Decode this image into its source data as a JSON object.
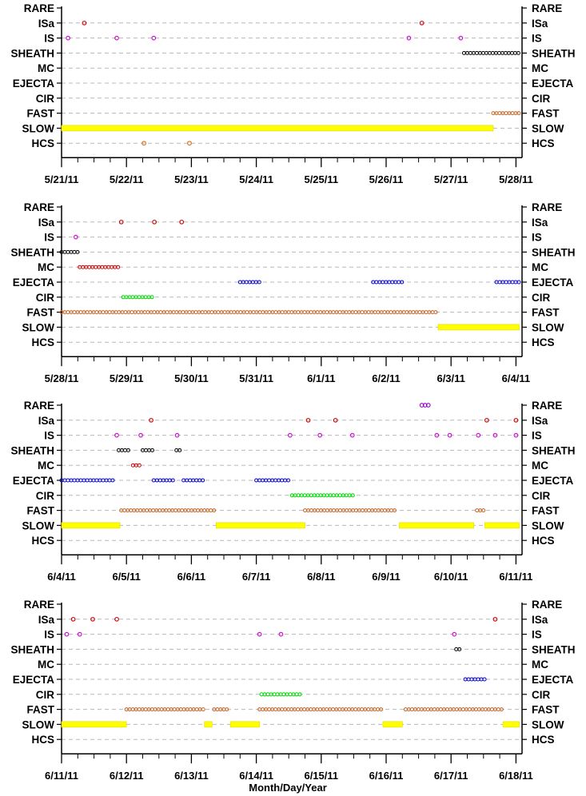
{
  "chart_data": {
    "type": "scatter",
    "xlabel": "Month/Day/Year",
    "categories": [
      "RARE",
      "ISa",
      "IS",
      "SHEATH",
      "MC",
      "EJECTA",
      "CIR",
      "FAST",
      "SLOW",
      "HCS"
    ],
    "colors": {
      "ISa": "#cc0000",
      "IS": "#cc00cc",
      "SHEATH": "#000000",
      "MC": "#cc0000",
      "EJECTA": "#0000cc",
      "CIR": "#00dd00",
      "FAST": "#c86420",
      "SLOW": "#ffff00",
      "HCS": "#d2691e",
      "RARE": "#9900cc"
    },
    "grid": "dashed horizontal",
    "panels": [
      {
        "start": "2011-05-21",
        "xticks": [
          "5/21/11",
          "5/22/11",
          "5/23/11",
          "5/24/11",
          "5/25/11",
          "5/26/11",
          "5/27/11",
          "5/28/11"
        ],
        "events": [
          {
            "cat": "ISa",
            "x": 0.35
          },
          {
            "cat": "ISa",
            "x": 5.55
          },
          {
            "cat": "IS",
            "x": 0.1
          },
          {
            "cat": "IS",
            "x": 0.85
          },
          {
            "cat": "IS",
            "x": 1.42
          },
          {
            "cat": "IS",
            "x": 5.35
          },
          {
            "cat": "IS",
            "x": 6.15
          }
        ],
        "intervals": [
          {
            "cat": "SHEATH",
            "start": 6.2,
            "end": 7.05
          },
          {
            "cat": "FAST",
            "start": 6.65,
            "end": 7.05
          },
          {
            "cat": "SLOW",
            "start": 0.0,
            "end": 6.65
          }
        ],
        "hcs": [
          {
            "x": 1.27
          },
          {
            "x": 1.97
          }
        ]
      },
      {
        "start": "2011-05-28",
        "xticks": [
          "5/28/11",
          "5/29/11",
          "5/30/11",
          "5/31/11",
          "6/1/11",
          "6/2/11",
          "6/3/11",
          "6/4/11"
        ],
        "events": [
          {
            "cat": "ISa",
            "x": 0.92
          },
          {
            "cat": "ISa",
            "x": 1.43
          },
          {
            "cat": "ISa",
            "x": 1.85
          },
          {
            "cat": "IS",
            "x": 0.22
          }
        ],
        "intervals": [
          {
            "cat": "SHEATH",
            "start": 0.0,
            "end": 0.28
          },
          {
            "cat": "MC",
            "start": 0.28,
            "end": 0.92
          },
          {
            "cat": "EJECTA",
            "start": 2.75,
            "end": 3.05
          },
          {
            "cat": "EJECTA",
            "start": 4.8,
            "end": 5.25
          },
          {
            "cat": "EJECTA",
            "start": 6.7,
            "end": 7.05
          },
          {
            "cat": "CIR",
            "start": 0.95,
            "end": 1.42
          },
          {
            "cat": "FAST",
            "start": 0.0,
            "end": 5.8
          },
          {
            "cat": "SLOW",
            "start": 5.8,
            "end": 7.05
          }
        ],
        "hcs": []
      },
      {
        "start": "2011-06-04",
        "xticks": [
          "6/4/11",
          "6/5/11",
          "6/6/11",
          "6/7/11",
          "6/8/11",
          "6/9/11",
          "6/10/11",
          "6/11/11"
        ],
        "events": [
          {
            "cat": "RARE",
            "x": 5.55
          },
          {
            "cat": "RARE",
            "x": 5.6
          },
          {
            "cat": "RARE",
            "x": 5.65
          },
          {
            "cat": "ISa",
            "x": 1.38
          },
          {
            "cat": "ISa",
            "x": 3.8
          },
          {
            "cat": "ISa",
            "x": 4.22
          },
          {
            "cat": "ISa",
            "x": 6.55
          },
          {
            "cat": "ISa",
            "x": 7.0
          },
          {
            "cat": "IS",
            "x": 0.85
          },
          {
            "cat": "IS",
            "x": 1.22
          },
          {
            "cat": "IS",
            "x": 1.78
          },
          {
            "cat": "IS",
            "x": 3.52
          },
          {
            "cat": "IS",
            "x": 3.98
          },
          {
            "cat": "IS",
            "x": 4.48
          },
          {
            "cat": "IS",
            "x": 5.78
          },
          {
            "cat": "IS",
            "x": 5.98
          },
          {
            "cat": "IS",
            "x": 6.42
          },
          {
            "cat": "IS",
            "x": 6.68
          },
          {
            "cat": "IS",
            "x": 7.0
          }
        ],
        "intervals": [
          {
            "cat": "SHEATH",
            "start": 0.88,
            "end": 1.05
          },
          {
            "cat": "SHEATH",
            "start": 1.25,
            "end": 1.4
          },
          {
            "cat": "SHEATH",
            "start": 1.77,
            "end": 1.85
          },
          {
            "cat": "MC",
            "start": 1.1,
            "end": 1.22
          },
          {
            "cat": "EJECTA",
            "start": 0.0,
            "end": 0.8
          },
          {
            "cat": "EJECTA",
            "start": 1.42,
            "end": 1.75
          },
          {
            "cat": "EJECTA",
            "start": 1.88,
            "end": 2.2
          },
          {
            "cat": "EJECTA",
            "start": 3.0,
            "end": 3.5
          },
          {
            "cat": "CIR",
            "start": 3.55,
            "end": 4.5
          },
          {
            "cat": "FAST",
            "start": 0.92,
            "end": 2.35
          },
          {
            "cat": "FAST",
            "start": 3.75,
            "end": 5.15
          },
          {
            "cat": "FAST",
            "start": 6.4,
            "end": 6.5
          },
          {
            "cat": "SLOW",
            "start": 0.0,
            "end": 0.9
          },
          {
            "cat": "SLOW",
            "start": 2.38,
            "end": 3.75
          },
          {
            "cat": "SLOW",
            "start": 5.2,
            "end": 6.35
          },
          {
            "cat": "SLOW",
            "start": 6.52,
            "end": 7.05
          }
        ],
        "hcs": []
      },
      {
        "start": "2011-06-11",
        "xticks": [
          "6/11/11",
          "6/12/11",
          "6/13/11",
          "6/14/11",
          "6/15/11",
          "6/16/11",
          "6/17/11",
          "6/18/11"
        ],
        "events": [
          {
            "cat": "ISa",
            "x": 0.18
          },
          {
            "cat": "ISa",
            "x": 0.48
          },
          {
            "cat": "ISa",
            "x": 0.85
          },
          {
            "cat": "ISa",
            "x": 6.68
          },
          {
            "cat": "IS",
            "x": 0.08
          },
          {
            "cat": "IS",
            "x": 0.28
          },
          {
            "cat": "IS",
            "x": 3.05
          },
          {
            "cat": "IS",
            "x": 3.38
          },
          {
            "cat": "IS",
            "x": 6.05
          }
        ],
        "intervals": [
          {
            "cat": "SHEATH",
            "start": 6.08,
            "end": 6.15
          },
          {
            "cat": "EJECTA",
            "start": 6.22,
            "end": 6.52
          },
          {
            "cat": "CIR",
            "start": 3.08,
            "end": 3.7
          },
          {
            "cat": "FAST",
            "start": 1.0,
            "end": 2.2
          },
          {
            "cat": "FAST",
            "start": 2.35,
            "end": 2.55
          },
          {
            "cat": "FAST",
            "start": 3.05,
            "end": 4.95
          },
          {
            "cat": "FAST",
            "start": 5.3,
            "end": 6.8
          },
          {
            "cat": "SLOW",
            "start": 0.0,
            "end": 1.0
          },
          {
            "cat": "SLOW",
            "start": 2.2,
            "end": 2.32
          },
          {
            "cat": "SLOW",
            "start": 2.6,
            "end": 3.05
          },
          {
            "cat": "SLOW",
            "start": 4.95,
            "end": 5.25
          },
          {
            "cat": "SLOW",
            "start": 6.8,
            "end": 7.05
          }
        ],
        "hcs": []
      }
    ]
  }
}
